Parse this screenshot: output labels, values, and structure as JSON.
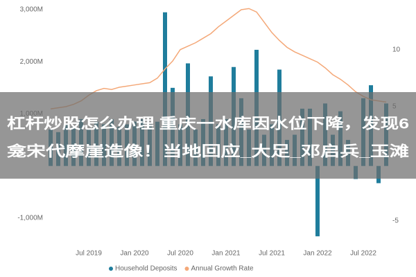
{
  "chart_data": {
    "type": "bar-line",
    "categories": [
      null,
      null,
      null,
      null,
      null,
      "Jul 2019",
      null,
      null,
      null,
      null,
      null,
      "Jan 2020",
      null,
      null,
      null,
      null,
      null,
      "Jul 2020",
      null,
      null,
      null,
      null,
      null,
      "Jan 2021",
      null,
      null,
      null,
      null,
      null,
      "Jul 2021",
      null,
      null,
      null,
      null,
      null,
      "Jan 2022",
      null,
      null,
      null,
      null,
      null,
      "Jul 2022",
      null,
      null,
      null
    ],
    "series": [
      {
        "name": "Household Deposits",
        "type": "bar",
        "color": "#1f7d9c",
        "values": [
          700,
          650,
          800,
          750,
          900,
          700,
          850,
          800,
          900,
          750,
          800,
          850,
          900,
          800,
          850,
          2950,
          1500,
          800,
          1970,
          700,
          900,
          1720,
          800,
          900,
          1900,
          1300,
          700,
          2230,
          600,
          800,
          1850,
          500,
          600,
          1100,
          1100,
          -1350,
          1200,
          600,
          1050,
          500,
          -250,
          1300,
          1550,
          -330,
          1200
        ]
      },
      {
        "name": "Annual Growth Rate",
        "type": "line",
        "axis": "y2",
        "color": "#f4a878",
        "values": [
          4.8,
          4.9,
          5,
          5.2,
          5.5,
          6,
          6.4,
          6.6,
          6.5,
          6.7,
          6.8,
          6.9,
          7,
          7.1,
          7.5,
          8.3,
          9,
          10,
          10.3,
          10.6,
          11,
          11.4,
          12,
          12.5,
          13,
          13.5,
          13.6,
          13.3,
          12.4,
          11.5,
          10.8,
          10.2,
          9.8,
          9.5,
          9.2,
          8.9,
          8.4,
          7.8,
          7.4,
          6.9,
          6.3,
          5.9,
          5.6,
          5.5,
          5.4
        ]
      }
    ],
    "ylim": [
      -1400,
      3000
    ],
    "yticks": [
      {
        "value": -1000,
        "label": "-1,000M"
      },
      {
        "value": 1000,
        "label": "1,000M"
      },
      {
        "value": 2000,
        "label": "2,000M"
      },
      {
        "value": 3000,
        "label": "3,000M"
      }
    ],
    "y2lim": [
      -6.6,
      13.5
    ],
    "y2ticks": [
      -5,
      5,
      10
    ],
    "legend": "bottom"
  },
  "banner": {
    "lines": [
      "杠杆炒股怎么办理 重庆一水库因水位下降，发现6",
      "龛宋代摩崖造像！当地回应_大足_邓启兵_玉滩"
    ]
  }
}
